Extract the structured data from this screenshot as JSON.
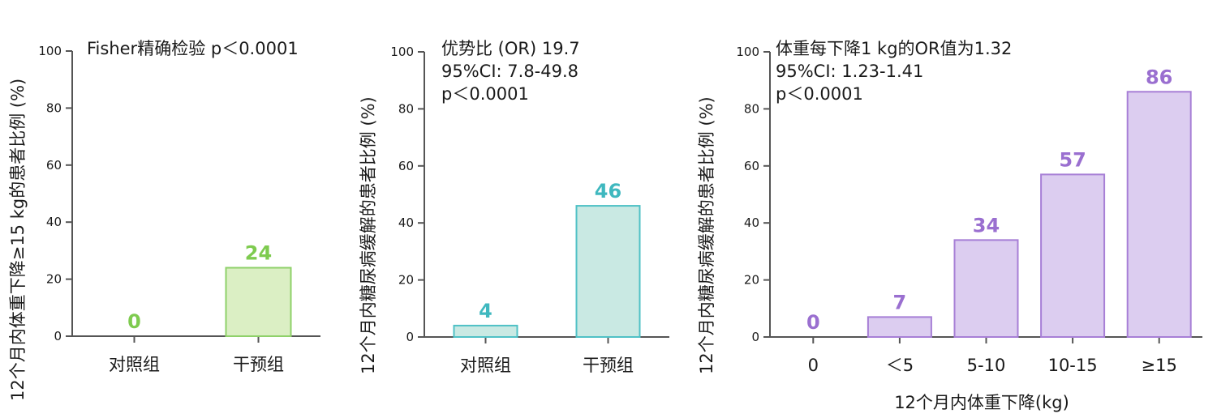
{
  "chart_data": [
    {
      "type": "bar",
      "categories": [
        "对照组",
        "干预组"
      ],
      "values": [
        0,
        24
      ],
      "data_labels": [
        "0",
        "24"
      ],
      "ylabel": "12个月内体重下降≥15 kg的患者比例 (%)",
      "xlabel": "",
      "ylim": [
        0,
        100
      ],
      "yticks": [
        "0",
        "20",
        "40",
        "60",
        "80",
        "100"
      ],
      "annotation": [
        "Fisher精确检验 p＜0.0001"
      ],
      "colors": {
        "fill": "#dbefc4",
        "stroke": "#8fd16a",
        "label": "#7ecb4f"
      }
    },
    {
      "type": "bar",
      "categories": [
        "对照组",
        "干预组"
      ],
      "values": [
        4,
        46
      ],
      "data_labels": [
        "4",
        "46"
      ],
      "ylabel": "12个月内糖尿病缓解的患者比例 (%)",
      "xlabel": "",
      "ylim": [
        0,
        100
      ],
      "yticks": [
        "0",
        "20",
        "40",
        "60",
        "80",
        "100"
      ],
      "annotation": [
        "优势比 (OR) 19.7",
        "95%CI: 7.8-49.8",
        "p＜0.0001"
      ],
      "colors": {
        "fill": "#c9e9e3",
        "stroke": "#4fc1c6",
        "label": "#3fb8bf"
      }
    },
    {
      "type": "bar",
      "categories": [
        "0",
        "＜5",
        "5-10",
        "10-15",
        "≥15"
      ],
      "values": [
        0,
        7,
        34,
        57,
        86
      ],
      "data_labels": [
        "0",
        "7",
        "34",
        "57",
        "86"
      ],
      "ylabel": "12个月内糖尿病缓解的患者比例 (%)",
      "xlabel": "12个月内体重下降(kg)",
      "ylim": [
        0,
        100
      ],
      "yticks": [
        "0",
        "20",
        "40",
        "60",
        "80",
        "100"
      ],
      "annotation": [
        "体重每下降1 kg的OR值为1.32",
        "95%CI: 1.23-1.41",
        "p＜0.0001"
      ],
      "colors": {
        "fill": "#dccdf0",
        "stroke": "#a77fd6",
        "label": "#9a6fd0"
      }
    }
  ]
}
